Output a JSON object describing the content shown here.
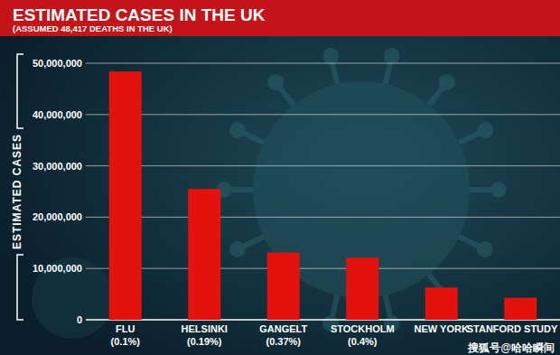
{
  "chart_data": {
    "type": "bar",
    "title": "ESTIMATED CASES IN THE UK",
    "subtitle": "(ASSUMED 48,417 DEATHS IN THE UK)",
    "y_label": "ESTIMATED CASES",
    "categories": [
      "FLU\n(0.1%)",
      "HELSINKI\n(0.19%)",
      "GANGELT\n(0.37%)",
      "STOCKHOLM\n(0.4%)",
      "NEW YORK",
      "STANFORD STUDY"
    ],
    "values": [
      48400000,
      25500000,
      13100000,
      12100000,
      6300000,
      4300000
    ],
    "color": "#e3120d",
    "ylim": [
      0,
      50000000
    ],
    "yticks": [
      0,
      {
        "value": 10000000,
        "label": "10,000,000"
      },
      {
        "value": 20000000,
        "label": "20,000,000"
      },
      {
        "value": 30000000,
        "label": "30,000,000"
      },
      {
        "value": 40000000,
        "label": "40,000,000"
      },
      {
        "value": 50000000,
        "label": "50,000,000"
      }
    ],
    "grid": true,
    "data_labels": false,
    "watermark": "搜狐号@哈哈瞬间"
  }
}
